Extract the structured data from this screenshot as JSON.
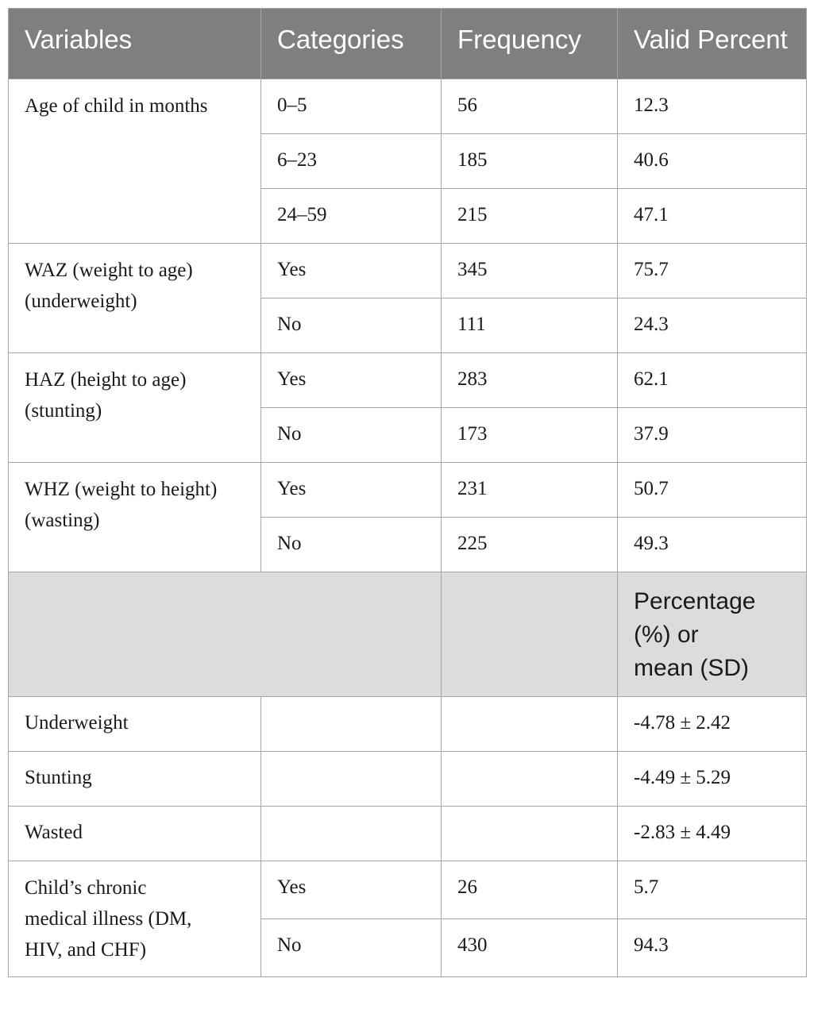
{
  "columns": [
    "Variables",
    "Categories",
    "Frequency",
    "Valid Percent"
  ],
  "age": {
    "label": "Age of child in months",
    "rows": [
      {
        "category": "0–5",
        "frequency": "56",
        "percent": "12.3"
      },
      {
        "category": "6–23",
        "frequency": "185",
        "percent": "40.6"
      },
      {
        "category": "24–59",
        "frequency": "215",
        "percent": "47.1"
      }
    ]
  },
  "waz": {
    "label_line1": "WAZ (weight to age)",
    "label_line2": "(underweight)",
    "rows": [
      {
        "category": "Yes",
        "frequency": "345",
        "percent": "75.7"
      },
      {
        "category": "No",
        "frequency": "111",
        "percent": "24.3"
      }
    ]
  },
  "haz": {
    "label_line1": "HAZ (height to age)",
    "label_line2": "(stunting)",
    "rows": [
      {
        "category": "Yes",
        "frequency": "283",
        "percent": "62.1"
      },
      {
        "category": "No",
        "frequency": "173",
        "percent": "37.9"
      }
    ]
  },
  "whz": {
    "label_line1": "WHZ (weight to height)",
    "label_line2": "(wasting)",
    "rows": [
      {
        "category": "Yes",
        "frequency": "231",
        "percent": "50.7"
      },
      {
        "category": "No",
        "frequency": "225",
        "percent": "49.3"
      }
    ]
  },
  "subheader": {
    "line1": "Percentage",
    "line2": "(%) or",
    "line3": "mean (SD)"
  },
  "means": [
    {
      "label": "Underweight",
      "value": "-4.78 ± 2.42"
    },
    {
      "label": "Stunting",
      "value": "-4.49 ± 5.29"
    },
    {
      "label": "Wasted",
      "value": "-2.83 ± 4.49"
    }
  ],
  "chronic": {
    "label_line1": "Child’s chronic",
    "label_line2": "medical illness (DM,",
    "label_line3": "HIV, and CHF)",
    "rows": [
      {
        "category": "Yes",
        "frequency": "26",
        "percent": "5.7"
      },
      {
        "category": "No",
        "frequency": "430",
        "percent": "94.3"
      }
    ]
  }
}
